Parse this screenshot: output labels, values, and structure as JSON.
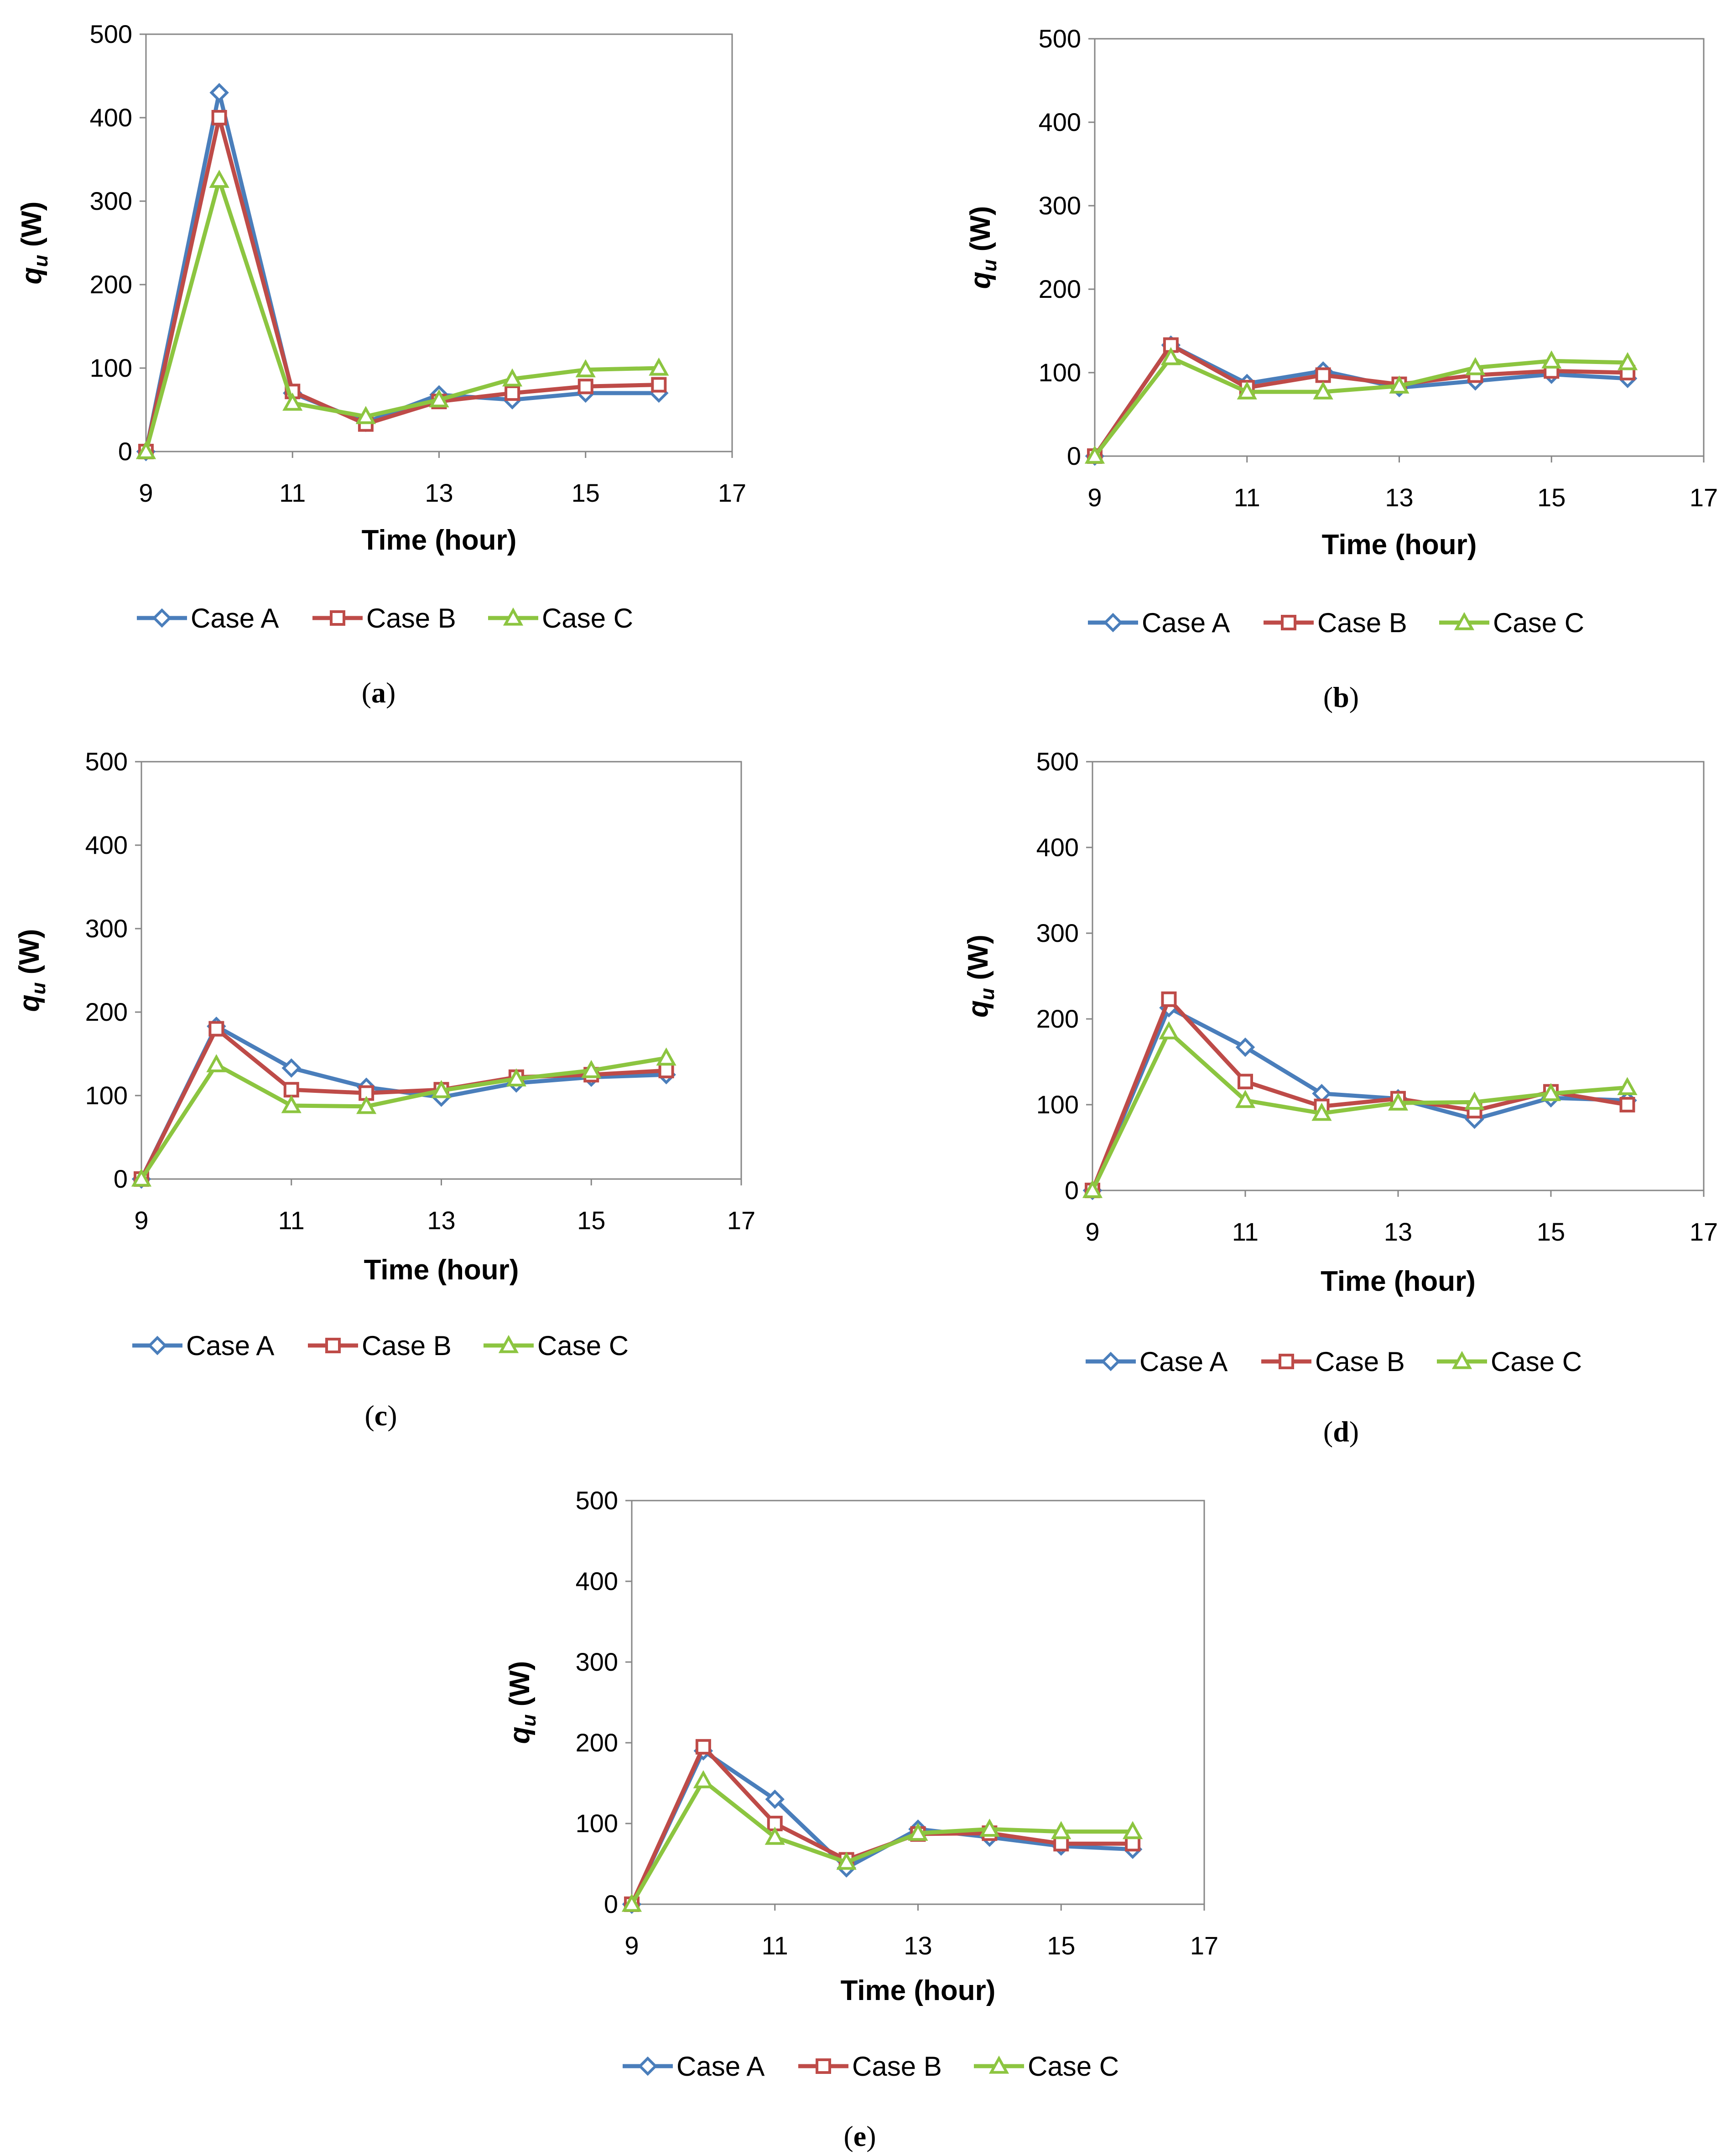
{
  "legend_symbols": {
    "Case A": "diamond",
    "Case B": "square",
    "Case C": "triangle"
  },
  "series_colors": {
    "Case A": "#4a7ebb",
    "Case B": "#be4b48",
    "Case C": "#8cc540"
  },
  "chart_data": [
    {
      "type": "line",
      "caption": "a",
      "xlabel": "Time (hour)",
      "ylabel_main": "q",
      "ylabel_sub": "u",
      "ylabel_unit": " (W)",
      "xlim": [
        9,
        17
      ],
      "ylim": [
        0,
        500
      ],
      "xticks": [
        9,
        11,
        13,
        15,
        17
      ],
      "yticks": [
        0,
        100,
        200,
        300,
        400,
        500
      ],
      "legend_position": "bottom",
      "x": [
        9,
        10,
        11,
        12,
        13,
        14,
        15,
        16
      ],
      "series": [
        {
          "name": "Case A",
          "values": [
            0,
            430,
            70,
            35,
            68,
            62,
            70,
            70
          ]
        },
        {
          "name": "Case B",
          "values": [
            0,
            400,
            72,
            33,
            60,
            70,
            78,
            80
          ]
        },
        {
          "name": "Case C",
          "values": [
            0,
            325,
            58,
            42,
            62,
            87,
            98,
            100
          ]
        }
      ]
    },
    {
      "type": "line",
      "caption": "b",
      "xlabel": "Time (hour)",
      "ylabel_main": "q",
      "ylabel_sub": "u",
      "ylabel_unit": " (W)",
      "xlim": [
        9,
        17
      ],
      "ylim": [
        0,
        500
      ],
      "xticks": [
        9,
        11,
        13,
        15,
        17
      ],
      "yticks": [
        0,
        100,
        200,
        300,
        400,
        500
      ],
      "legend_position": "bottom",
      "x": [
        9,
        10,
        11,
        12,
        13,
        14,
        15,
        16
      ],
      "series": [
        {
          "name": "Case A",
          "values": [
            0,
            133,
            87,
            102,
            82,
            90,
            98,
            93
          ]
        },
        {
          "name": "Case B",
          "values": [
            0,
            133,
            82,
            97,
            86,
            97,
            102,
            100
          ]
        },
        {
          "name": "Case C",
          "values": [
            0,
            118,
            77,
            77,
            84,
            106,
            114,
            112
          ]
        }
      ]
    },
    {
      "type": "line",
      "caption": "c",
      "xlabel": "Time (hour)",
      "ylabel_main": "q",
      "ylabel_sub": "u",
      "ylabel_unit": " (W)",
      "xlim": [
        9,
        17
      ],
      "ylim": [
        0,
        500
      ],
      "xticks": [
        9,
        11,
        13,
        15,
        17
      ],
      "yticks": [
        0,
        100,
        200,
        300,
        400,
        500
      ],
      "legend_position": "bottom",
      "x": [
        9,
        10,
        11,
        12,
        13,
        14,
        15,
        16
      ],
      "series": [
        {
          "name": "Case A",
          "values": [
            0,
            183,
            133,
            110,
            98,
            115,
            122,
            125
          ]
        },
        {
          "name": "Case B",
          "values": [
            0,
            180,
            107,
            103,
            107,
            122,
            125,
            130
          ]
        },
        {
          "name": "Case C",
          "values": [
            0,
            137,
            88,
            87,
            106,
            120,
            130,
            145
          ]
        }
      ]
    },
    {
      "type": "line",
      "caption": "d",
      "xlabel": "Time (hour)",
      "ylabel_main": "q",
      "ylabel_sub": "u",
      "ylabel_unit": " (W)",
      "xlim": [
        9,
        17
      ],
      "ylim": [
        0,
        500
      ],
      "xticks": [
        9,
        11,
        13,
        15,
        17
      ],
      "yticks": [
        0,
        100,
        200,
        300,
        400,
        500
      ],
      "legend_position": "bottom",
      "x": [
        9,
        10,
        11,
        12,
        13,
        14,
        15,
        16
      ],
      "series": [
        {
          "name": "Case A",
          "values": [
            0,
            213,
            167,
            113,
            107,
            83,
            108,
            105
          ]
        },
        {
          "name": "Case B",
          "values": [
            0,
            223,
            127,
            98,
            107,
            93,
            115,
            100
          ]
        },
        {
          "name": "Case C",
          "values": [
            0,
            185,
            105,
            90,
            102,
            103,
            113,
            120
          ]
        }
      ]
    },
    {
      "type": "line",
      "caption": "e",
      "xlabel": "Time (hour)",
      "ylabel_main": "q",
      "ylabel_sub": "u",
      "ylabel_unit": " (W)",
      "xlim": [
        9,
        17
      ],
      "ylim": [
        0,
        500
      ],
      "xticks": [
        9,
        11,
        13,
        15,
        17
      ],
      "yticks": [
        0,
        100,
        200,
        300,
        400,
        500
      ],
      "legend_position": "bottom",
      "x": [
        9,
        10,
        11,
        12,
        13,
        14,
        15,
        16
      ],
      "series": [
        {
          "name": "Case A",
          "values": [
            0,
            190,
            130,
            45,
            93,
            83,
            72,
            68
          ]
        },
        {
          "name": "Case B",
          "values": [
            0,
            195,
            100,
            55,
            87,
            88,
            75,
            75
          ]
        },
        {
          "name": "Case C",
          "values": [
            0,
            153,
            83,
            52,
            88,
            93,
            90,
            90
          ]
        }
      ]
    }
  ]
}
